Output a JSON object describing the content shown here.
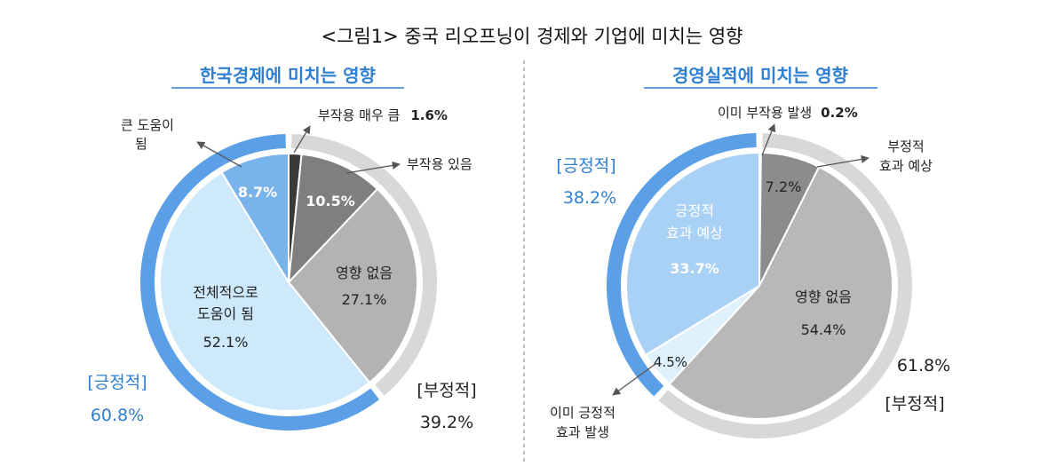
{
  "figure_title": "<그림1> 중국 리오프닝이 경제와 기업에 미치는 영향",
  "chart_data": [
    {
      "type": "pie",
      "title": "한국경제에 미치는 영향",
      "slices": [
        {
          "label": "부작용 매우 큼",
          "value": 1.6,
          "value_text": "1.6%",
          "color": "#3a3a3a"
        },
        {
          "label": "부작용 있음",
          "value": 10.5,
          "value_text": "10.5%",
          "color": "#7f7f7f"
        },
        {
          "label": "영향 없음",
          "value": 27.1,
          "value_text": "27.1%",
          "color": "#b3b3b3"
        },
        {
          "label": "전체적으로 도움이 됨",
          "value": 52.1,
          "value_text": "52.1%",
          "color": "#cde9fb"
        },
        {
          "label": "큰 도움이 됨",
          "value": 8.7,
          "value_text": "8.7%",
          "color": "#78b3eb"
        }
      ],
      "groups": [
        {
          "label": "[긍정적]",
          "value": 60.8,
          "value_text": "60.8%",
          "color": "#5b9fe6"
        },
        {
          "label": "[부정적]",
          "value": 39.2,
          "value_text": "39.2%",
          "color": "#d8d8d8"
        }
      ]
    },
    {
      "type": "pie",
      "title": "경영실적에 미치는 영향",
      "slices": [
        {
          "label": "이미 부작용 발생",
          "value": 0.2,
          "value_text": "0.2%",
          "color": "#3a3a3a"
        },
        {
          "label": "부정적 효과 예상",
          "value": 7.2,
          "value_text": "7.2%",
          "color": "#8c8c8c"
        },
        {
          "label": "영향 없음",
          "value": 54.4,
          "value_text": "54.4%",
          "color": "#b8b8b8"
        },
        {
          "label": "이미 긍정적 효과 발생",
          "value": 4.5,
          "value_text": "4.5%",
          "color": "#def1fd"
        },
        {
          "label": "긍정적 효과 예상",
          "value": 33.7,
          "value_text": "33.7%",
          "color": "#a9d0f5"
        }
      ],
      "groups": [
        {
          "label": "[긍정적]",
          "value": 38.2,
          "value_text": "38.2%",
          "color": "#5b9fe6"
        },
        {
          "label": "[부정적]",
          "value": 61.8,
          "value_text": "61.8%",
          "color": "#d8d8d8"
        }
      ]
    }
  ]
}
